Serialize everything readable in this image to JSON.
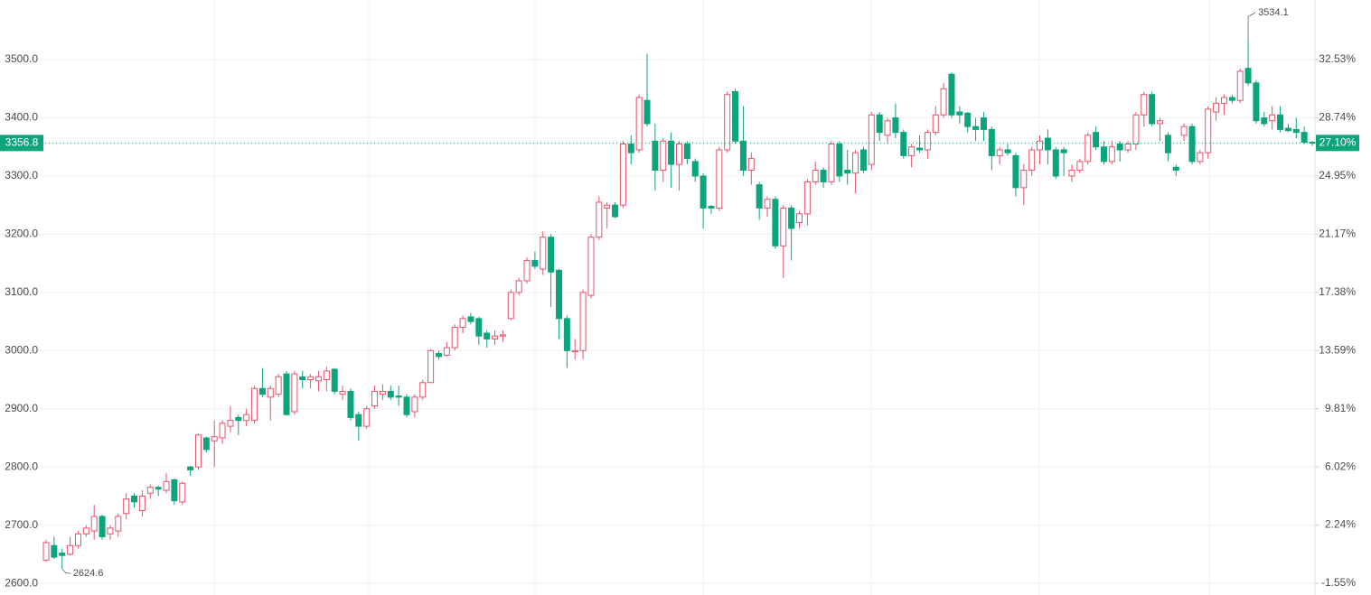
{
  "chart_data": {
    "type": "candlestick",
    "open": [
      2640,
      2665,
      2652,
      2650,
      2665,
      2685,
      2690,
      2715,
      2685,
      2690,
      2720,
      2750,
      2725,
      2755,
      2765,
      2760,
      2778,
      2740,
      2800,
      2800,
      2850,
      2845,
      2850,
      2870,
      2885,
      2880,
      2880,
      2935,
      2920,
      2925,
      2960,
      2895,
      2955,
      2950,
      2948,
      2950,
      2968,
      2925,
      2930,
      2890,
      2870,
      2905,
      2925,
      2930,
      2922,
      2920,
      2895,
      2920,
      2945,
      2995,
      2992,
      3005,
      3040,
      3058,
      3055,
      3030,
      3020,
      3025,
      3055,
      3100,
      3120,
      3155,
      3140,
      3195,
      3138,
      3055,
      2998,
      3000,
      3095,
      3195,
      3245,
      3250,
      3250,
      3355,
      3345,
      3430,
      3360,
      3310,
      3360,
      3320,
      3355,
      3325,
      3300,
      3248,
      3245,
      3345,
      3445,
      3360,
      3310,
      3285,
      3245,
      3260,
      3180,
      3245,
      3220,
      3235,
      3290,
      3310,
      3290,
      3355,
      3310,
      3305,
      3345,
      3320,
      3405,
      3370,
      3400,
      3375,
      3335,
      3348,
      3345,
      3375,
      3405,
      3475,
      3410,
      3408,
      3385,
      3400,
      3380,
      3335,
      3345,
      3335,
      3280,
      3310,
      3345,
      3365,
      3345,
      3345,
      3300,
      3310,
      3325,
      3375,
      3350,
      3325,
      3355,
      3345,
      3355,
      3405,
      3440,
      3390,
      3370,
      3315,
      3370,
      3385,
      3325,
      3340,
      3410,
      3425,
      3435,
      3430,
      3485,
      3460,
      3400,
      3395,
      3405,
      3382,
      3380,
      3375,
      3358
    ],
    "high": [
      2675,
      2680,
      2660,
      2680,
      2690,
      2700,
      2735,
      2718,
      2700,
      2720,
      2755,
      2755,
      2760,
      2770,
      2768,
      2790,
      2780,
      2775,
      2802,
      2858,
      2852,
      2880,
      2880,
      2905,
      2890,
      2900,
      2940,
      2970,
      2940,
      2960,
      2965,
      2965,
      2965,
      2960,
      2965,
      2972,
      2970,
      2940,
      2935,
      2895,
      2905,
      2940,
      2942,
      2940,
      2940,
      2925,
      2925,
      2950,
      3002,
      3000,
      3015,
      3045,
      3060,
      3065,
      3058,
      3035,
      3035,
      3035,
      3105,
      3125,
      3160,
      3170,
      3205,
      3200,
      3140,
      3060,
      3020,
      3105,
      3200,
      3265,
      3255,
      3255,
      3360,
      3370,
      3440,
      3510,
      3390,
      3365,
      3375,
      3360,
      3360,
      3330,
      3305,
      3250,
      3350,
      3445,
      3450,
      3420,
      3340,
      3290,
      3265,
      3265,
      3250,
      3250,
      3240,
      3295,
      3325,
      3315,
      3360,
      3360,
      3345,
      3345,
      3350,
      3410,
      3410,
      3400,
      3425,
      3380,
      3355,
      3370,
      3380,
      3420,
      3460,
      3478,
      3420,
      3410,
      3400,
      3410,
      3385,
      3350,
      3355,
      3340,
      3320,
      3350,
      3370,
      3380,
      3350,
      3350,
      3320,
      3330,
      3375,
      3385,
      3360,
      3360,
      3360,
      3360,
      3410,
      3445,
      3445,
      3400,
      3375,
      3320,
      3390,
      3390,
      3345,
      3420,
      3435,
      3440,
      3440,
      3485,
      3534.1,
      3465,
      3410,
      3420,
      3420,
      3390,
      3400,
      3385,
      3360
    ],
    "low": [
      2637,
      2642,
      2624.6,
      2648,
      2660,
      2680,
      2675,
      2675,
      2675,
      2680,
      2710,
      2730,
      2715,
      2745,
      2750,
      2755,
      2735,
      2735,
      2785,
      2795,
      2825,
      2800,
      2840,
      2860,
      2855,
      2870,
      2875,
      2920,
      2880,
      2920,
      2888,
      2890,
      2935,
      2935,
      2930,
      2930,
      2925,
      2915,
      2880,
      2845,
      2865,
      2900,
      2915,
      2915,
      2905,
      2885,
      2885,
      2915,
      2945,
      2985,
      2990,
      3000,
      3030,
      3045,
      3010,
      3005,
      3010,
      3015,
      3052,
      3095,
      3115,
      3140,
      3130,
      3075,
      3020,
      2970,
      2985,
      2985,
      3090,
      3190,
      3210,
      3228,
      3245,
      3320,
      3340,
      3385,
      3275,
      3290,
      3280,
      3275,
      3320,
      3290,
      3210,
      3235,
      3240,
      3340,
      3355,
      3300,
      3285,
      3225,
      3230,
      3175,
      3125,
      3155,
      3210,
      3215,
      3285,
      3280,
      3285,
      3290,
      3285,
      3270,
      3305,
      3310,
      3360,
      3355,
      3365,
      3330,
      3315,
      3340,
      3330,
      3370,
      3400,
      3400,
      3390,
      3375,
      3360,
      3360,
      3310,
      3320,
      3335,
      3265,
      3250,
      3300,
      3320,
      3320,
      3295,
      3300,
      3290,
      3305,
      3320,
      3345,
      3320,
      3320,
      3325,
      3340,
      3345,
      3385,
      3385,
      3360,
      3325,
      3300,
      3360,
      3320,
      3320,
      3330,
      3395,
      3405,
      3425,
      3425,
      3455,
      3390,
      3385,
      3380,
      3375,
      3375,
      3365,
      3355,
      3352
    ],
    "close": [
      2670,
      2645,
      2648,
      2665,
      2685,
      2695,
      2715,
      2680,
      2695,
      2715,
      2745,
      2740,
      2750,
      2765,
      2762,
      2775,
      2742,
      2772,
      2795,
      2855,
      2830,
      2852,
      2875,
      2880,
      2880,
      2890,
      2935,
      2925,
      2935,
      2955,
      2890,
      2960,
      2950,
      2955,
      2955,
      2965,
      2930,
      2930,
      2885,
      2870,
      2900,
      2930,
      2930,
      2920,
      2920,
      2890,
      2920,
      2945,
      3000,
      2990,
      3005,
      3040,
      3055,
      3050,
      3025,
      3020,
      3025,
      3027,
      3100,
      3120,
      3155,
      3145,
      3195,
      3135,
      3055,
      3000,
      3000,
      3100,
      3195,
      3255,
      3250,
      3230,
      3355,
      3340,
      3435,
      3390,
      3310,
      3360,
      3320,
      3355,
      3330,
      3300,
      3245,
      3245,
      3345,
      3440,
      3360,
      3310,
      3330,
      3245,
      3260,
      3180,
      3245,
      3210,
      3235,
      3290,
      3310,
      3290,
      3355,
      3300,
      3305,
      3340,
      3310,
      3405,
      3375,
      3395,
      3375,
      3335,
      3350,
      3345,
      3375,
      3405,
      3450,
      3405,
      3405,
      3385,
      3380,
      3380,
      3335,
      3345,
      3340,
      3280,
      3310,
      3345,
      3360,
      3345,
      3300,
      3340,
      3310,
      3325,
      3370,
      3350,
      3325,
      3350,
      3345,
      3355,
      3405,
      3440,
      3390,
      3395,
      3340,
      3310,
      3385,
      3325,
      3340,
      3415,
      3425,
      3435,
      3430,
      3480,
      3460,
      3395,
      3390,
      3405,
      3380,
      3378,
      3375,
      3358,
      3356.8
    ],
    "up_color": "#e5546c",
    "down_color": "#0ca47c",
    "ylim": [
      2580,
      3602.5
    ],
    "yticks": [
      {
        "value": 2600,
        "label": "2600.0"
      },
      {
        "value": 2700,
        "label": "2700.0"
      },
      {
        "value": 2800,
        "label": "2800.0"
      },
      {
        "value": 2900,
        "label": "2900.0"
      },
      {
        "value": 3000,
        "label": "3000.0"
      },
      {
        "value": 3100,
        "label": "3100.0"
      },
      {
        "value": 3200,
        "label": "3200.0"
      },
      {
        "value": 3300,
        "label": "3300.0"
      },
      {
        "value": 3400,
        "label": "3400.0"
      },
      {
        "value": 3500,
        "label": "3500.0"
      }
    ],
    "y2lim": [
      -2.31,
      36.4
    ],
    "y2ticks": [
      {
        "value": -1.55,
        "label": "-1.55%"
      },
      {
        "value": 2.24,
        "label": "2.24%"
      },
      {
        "value": 6.02,
        "label": "6.02%"
      },
      {
        "value": 9.81,
        "label": "9.81%"
      },
      {
        "value": 13.59,
        "label": "13.59%"
      },
      {
        "value": 17.38,
        "label": "17.38%"
      },
      {
        "value": 21.17,
        "label": "21.17%"
      },
      {
        "value": 24.95,
        "label": "24.95%"
      },
      {
        "value": 28.74,
        "label": "28.74%"
      },
      {
        "value": 32.53,
        "label": "32.53%"
      }
    ],
    "last_change": {
      "value": 27.1,
      "label": "27.10%"
    },
    "grid": true
  }
}
